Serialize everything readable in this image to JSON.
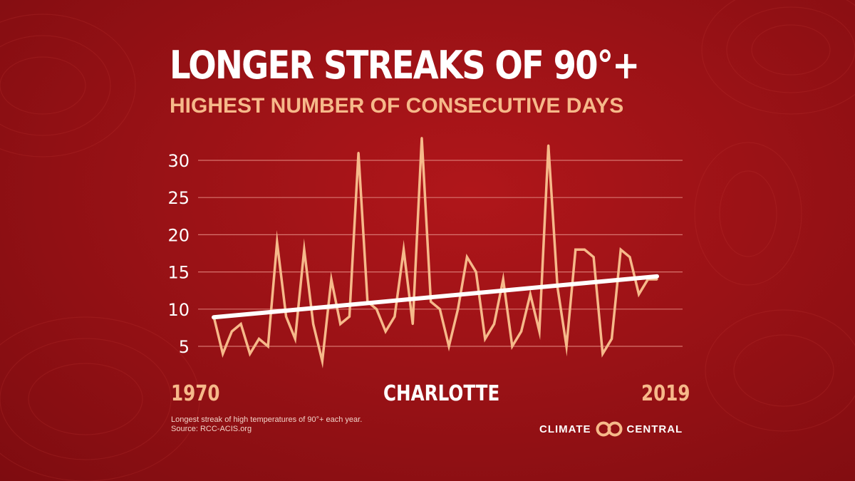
{
  "header": {
    "title": "LONGER STREAKS OF 90°+",
    "subtitle": "HIGHEST NUMBER OF CONSECUTIVE DAYS"
  },
  "footer": {
    "note_line1": "Longest streak of high temperatures of 90°+  each year.",
    "note_line2": "Source: RCC-ACIS.org",
    "brand_left": "CLIMATE",
    "brand_right": "CENTRAL",
    "brand_logo_icon": "linked-circles-icon"
  },
  "colors": {
    "background": "#9a1216",
    "series_line": "#f6b98a",
    "trend_line": "#ffffff",
    "gridline": "#d8746e",
    "title": "#ffffff",
    "subtitle": "#f6b98a"
  },
  "chart_data": {
    "type": "line",
    "title": "LONGER STREAKS OF 90°+",
    "subtitle": "HIGHEST NUMBER OF CONSECUTIVE DAYS",
    "location_label": "CHARLOTTE",
    "x_start_label": "1970",
    "x_end_label": "2019",
    "xlim": [
      1970,
      2019
    ],
    "ylim": [
      3,
      33
    ],
    "y_ticks": [
      5,
      10,
      15,
      20,
      25,
      30
    ],
    "grid": true,
    "series": [
      {
        "x": [
          1970,
          1971,
          1972,
          1973,
          1974,
          1975,
          1976,
          1977,
          1978,
          1979,
          1980,
          1981,
          1982,
          1983,
          1984,
          1985,
          1986,
          1987,
          1988,
          1989,
          1990,
          1991,
          1992,
          1993,
          1994,
          1995,
          1996,
          1997,
          1998,
          1999,
          2000,
          2001,
          2002,
          2003,
          2004,
          2005,
          2006,
          2007,
          2008,
          2009,
          2010,
          2011,
          2012,
          2013,
          2014,
          2015,
          2016,
          2017,
          2018,
          2019
        ],
        "values": [
          9,
          4,
          7,
          8,
          4,
          6,
          5,
          19,
          9,
          6,
          18,
          8,
          3,
          14,
          8,
          9,
          31,
          11,
          10,
          7,
          9,
          18,
          8,
          33,
          11,
          10,
          5,
          10,
          17,
          15,
          6,
          8,
          14,
          5,
          7,
          12,
          7,
          32,
          13,
          5,
          18,
          18,
          17,
          4,
          6,
          18,
          17,
          12,
          14,
          14
        ]
      },
      {
        "x": [
          1970,
          2019
        ],
        "values": [
          8.9,
          14.4
        ]
      }
    ]
  }
}
